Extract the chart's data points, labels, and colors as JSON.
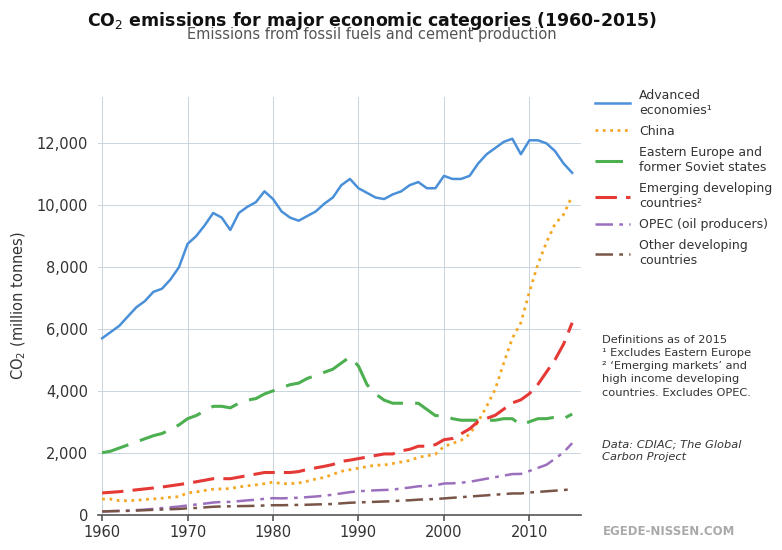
{
  "title_main": "CO$_2$ emissions for major economic categories (1960-2015)",
  "title_sub": "Emissions from fossil fuels and cement production",
  "ylabel": "CO$_2$ (million tonnes)",
  "footnote": "Definitions as of 2015\n¹ Excludes Eastern Europe\n² ‘Emerging markets’ and\nhigh income developing\ncountries. Excludes OPEC.",
  "footer_source": "Data: CDIAC; The Global\nCarbon Project",
  "footer_brand": "EGEDE-NISSEN.COM",
  "years": [
    1960,
    1961,
    1962,
    1963,
    1964,
    1965,
    1966,
    1967,
    1968,
    1969,
    1970,
    1971,
    1972,
    1973,
    1974,
    1975,
    1976,
    1977,
    1978,
    1979,
    1980,
    1981,
    1982,
    1983,
    1984,
    1985,
    1986,
    1987,
    1988,
    1989,
    1990,
    1991,
    1992,
    1993,
    1994,
    1995,
    1996,
    1997,
    1998,
    1999,
    2000,
    2001,
    2002,
    2003,
    2004,
    2005,
    2006,
    2007,
    2008,
    2009,
    2010,
    2011,
    2012,
    2013,
    2014,
    2015
  ],
  "advanced": [
    5700,
    5900,
    6100,
    6400,
    6700,
    6900,
    7200,
    7300,
    7600,
    8000,
    8750,
    9000,
    9350,
    9750,
    9600,
    9200,
    9750,
    9950,
    10100,
    10450,
    10200,
    9800,
    9600,
    9500,
    9650,
    9800,
    10050,
    10250,
    10650,
    10850,
    10550,
    10400,
    10250,
    10200,
    10350,
    10450,
    10650,
    10750,
    10550,
    10550,
    10950,
    10850,
    10850,
    10950,
    11350,
    11650,
    11850,
    12050,
    12150,
    11650,
    12100,
    12100,
    12000,
    11750,
    11350,
    11050
  ],
  "china": [
    500,
    500,
    450,
    450,
    460,
    490,
    505,
    530,
    560,
    580,
    700,
    730,
    780,
    820,
    830,
    840,
    895,
    930,
    960,
    1000,
    1050,
    1000,
    1000,
    1020,
    1080,
    1150,
    1200,
    1300,
    1400,
    1450,
    1500,
    1550,
    1600,
    1600,
    1650,
    1700,
    1750,
    1850,
    1900,
    1950,
    2200,
    2300,
    2400,
    2600,
    3000,
    3500,
    4050,
    4900,
    5700,
    6200,
    7200,
    8100,
    8800,
    9400,
    9700,
    10300
  ],
  "eastern_europe": [
    2000,
    2050,
    2150,
    2250,
    2350,
    2450,
    2550,
    2620,
    2750,
    2900,
    3100,
    3200,
    3350,
    3500,
    3500,
    3450,
    3600,
    3700,
    3750,
    3900,
    4000,
    4100,
    4200,
    4250,
    4400,
    4500,
    4600,
    4700,
    4900,
    5100,
    4800,
    4200,
    3900,
    3700,
    3600,
    3600,
    3600,
    3600,
    3400,
    3200,
    3200,
    3100,
    3050,
    3050,
    3050,
    3050,
    3050,
    3100,
    3100,
    2900,
    3000,
    3100,
    3100,
    3150,
    3100,
    3250
  ],
  "emerging": [
    700,
    720,
    740,
    770,
    800,
    830,
    860,
    890,
    930,
    970,
    1010,
    1060,
    1110,
    1160,
    1160,
    1160,
    1210,
    1260,
    1310,
    1360,
    1360,
    1360,
    1360,
    1390,
    1460,
    1510,
    1560,
    1620,
    1720,
    1760,
    1810,
    1860,
    1910,
    1960,
    1960,
    2060,
    2110,
    2210,
    2210,
    2260,
    2420,
    2460,
    2610,
    2770,
    3010,
    3110,
    3210,
    3410,
    3610,
    3710,
    3910,
    4210,
    4610,
    5010,
    5510,
    6200
  ],
  "opec": [
    100,
    110,
    120,
    130,
    145,
    160,
    185,
    210,
    235,
    260,
    295,
    325,
    355,
    390,
    410,
    410,
    435,
    460,
    480,
    510,
    530,
    525,
    535,
    545,
    565,
    585,
    610,
    645,
    685,
    725,
    755,
    770,
    785,
    795,
    805,
    845,
    875,
    915,
    925,
    945,
    1005,
    1010,
    1030,
    1060,
    1110,
    1160,
    1210,
    1260,
    1310,
    1315,
    1410,
    1510,
    1610,
    1810,
    2010,
    2310
  ],
  "other_developing": [
    100,
    110,
    115,
    120,
    130,
    142,
    153,
    163,
    173,
    183,
    203,
    213,
    233,
    253,
    263,
    268,
    273,
    278,
    283,
    293,
    303,
    303,
    308,
    313,
    318,
    328,
    333,
    343,
    363,
    383,
    393,
    403,
    413,
    423,
    433,
    453,
    463,
    483,
    493,
    503,
    523,
    543,
    563,
    583,
    603,
    623,
    643,
    663,
    683,
    683,
    713,
    733,
    753,
    773,
    793,
    823
  ],
  "colors": {
    "advanced": "#4a90d9",
    "china": "#f5a623",
    "eastern_europe": "#4caf50",
    "emerging": "#e53935",
    "opec": "#9c6fbe",
    "other_developing": "#795548"
  },
  "background_color": "#ffffff",
  "grid_color": "#c8d4de",
  "ylim": [
    0,
    13500
  ],
  "yticks": [
    0,
    2000,
    4000,
    6000,
    8000,
    10000,
    12000
  ],
  "xticks": [
    1960,
    1970,
    1980,
    1990,
    2000,
    2010
  ],
  "xlim": [
    1959.5,
    2016
  ]
}
